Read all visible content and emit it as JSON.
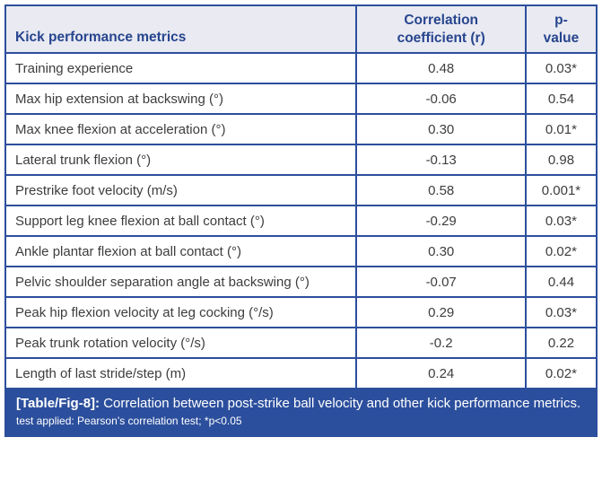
{
  "table": {
    "columns": {
      "metric": "Kick performance metrics",
      "correlation": "Correlation\ncoefficient (r)",
      "p": "p-\nvalue"
    },
    "rows": [
      {
        "metric": "Training experience",
        "r": "0.48",
        "p": "0.03*"
      },
      {
        "metric": "Max hip extension at backswing (°)",
        "r": "-0.06",
        "p": "0.54"
      },
      {
        "metric": "Max knee flexion at acceleration (°)",
        "r": "0.30",
        "p": "0.01*"
      },
      {
        "metric": "Lateral trunk flexion (°)",
        "r": "-0.13",
        "p": "0.98"
      },
      {
        "metric": "Prestrike foot velocity (m/s)",
        "r": "0.58",
        "p": "0.001*"
      },
      {
        "metric": "Support leg knee flexion at ball contact (°)",
        "r": "-0.29",
        "p": "0.03*"
      },
      {
        "metric": "Ankle plantar flexion at ball contact (°)",
        "r": "0.30",
        "p": "0.02*"
      },
      {
        "metric": "Pelvic shoulder separation angle at backswing (°)",
        "r": "-0.07",
        "p": "0.44"
      },
      {
        "metric": "Peak hip flexion velocity at leg cocking (°/s)",
        "r": "0.29",
        "p": "0.03*"
      },
      {
        "metric": "Peak trunk rotation velocity (°/s)",
        "r": "-0.2",
        "p": "0.22"
      },
      {
        "metric": "Length of last stride/step (m)",
        "r": "0.24",
        "p": "0.02*"
      }
    ]
  },
  "caption": {
    "label": "[Table/Fig-8]:",
    "text": " Correlation between post-strike ball velocity and other kick performance metrics.",
    "note": "test applied: Pearson’s correlation test; *p<0.05"
  },
  "colors": {
    "border_blue": "#2c4f9d",
    "header_background": "#e9eaf2",
    "header_text": "#27458e",
    "body_text": "#3d3d3d",
    "caption_background": "#2c4f9d",
    "caption_text": "#ffffff"
  }
}
